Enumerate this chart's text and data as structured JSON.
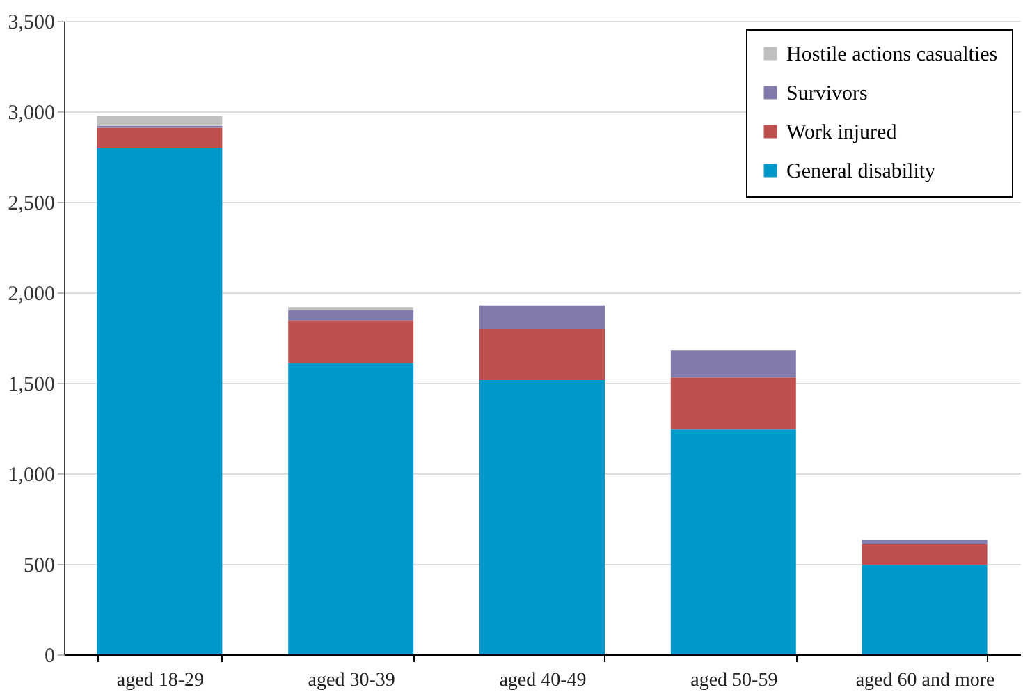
{
  "chart_data": {
    "type": "bar",
    "stacked": true,
    "categories": [
      "aged 18-29",
      "aged 30-39",
      "aged 40-49",
      "aged 50-59",
      "aged 60 and more"
    ],
    "series": [
      {
        "name": "General disability",
        "color": "#0099cc",
        "values": [
          2800,
          1610,
          1515,
          1245,
          495
        ]
      },
      {
        "name": "Work injured",
        "color": "#c0504d",
        "values": [
          110,
          235,
          285,
          285,
          115
        ]
      },
      {
        "name": "Survivors",
        "color": "#807bab",
        "values": [
          10,
          55,
          128,
          150,
          22
        ]
      },
      {
        "name": "Hostile actions casualties",
        "color": "#bfbfbf",
        "values": [
          55,
          18,
          null,
          null,
          null
        ]
      }
    ],
    "ylim": [
      0,
      3500
    ],
    "yticks": [
      0,
      500,
      {
        "value": 1000,
        "label": "1,000"
      },
      {
        "value": 1500,
        "label": "1,500"
      },
      {
        "value": 2000,
        "label": "2,000"
      },
      {
        "value": 2500,
        "label": "2,500"
      },
      {
        "value": 3000,
        "label": "3,000"
      },
      {
        "value": 3500,
        "label": "3,500"
      }
    ],
    "grid": "y",
    "legend": "top right"
  }
}
